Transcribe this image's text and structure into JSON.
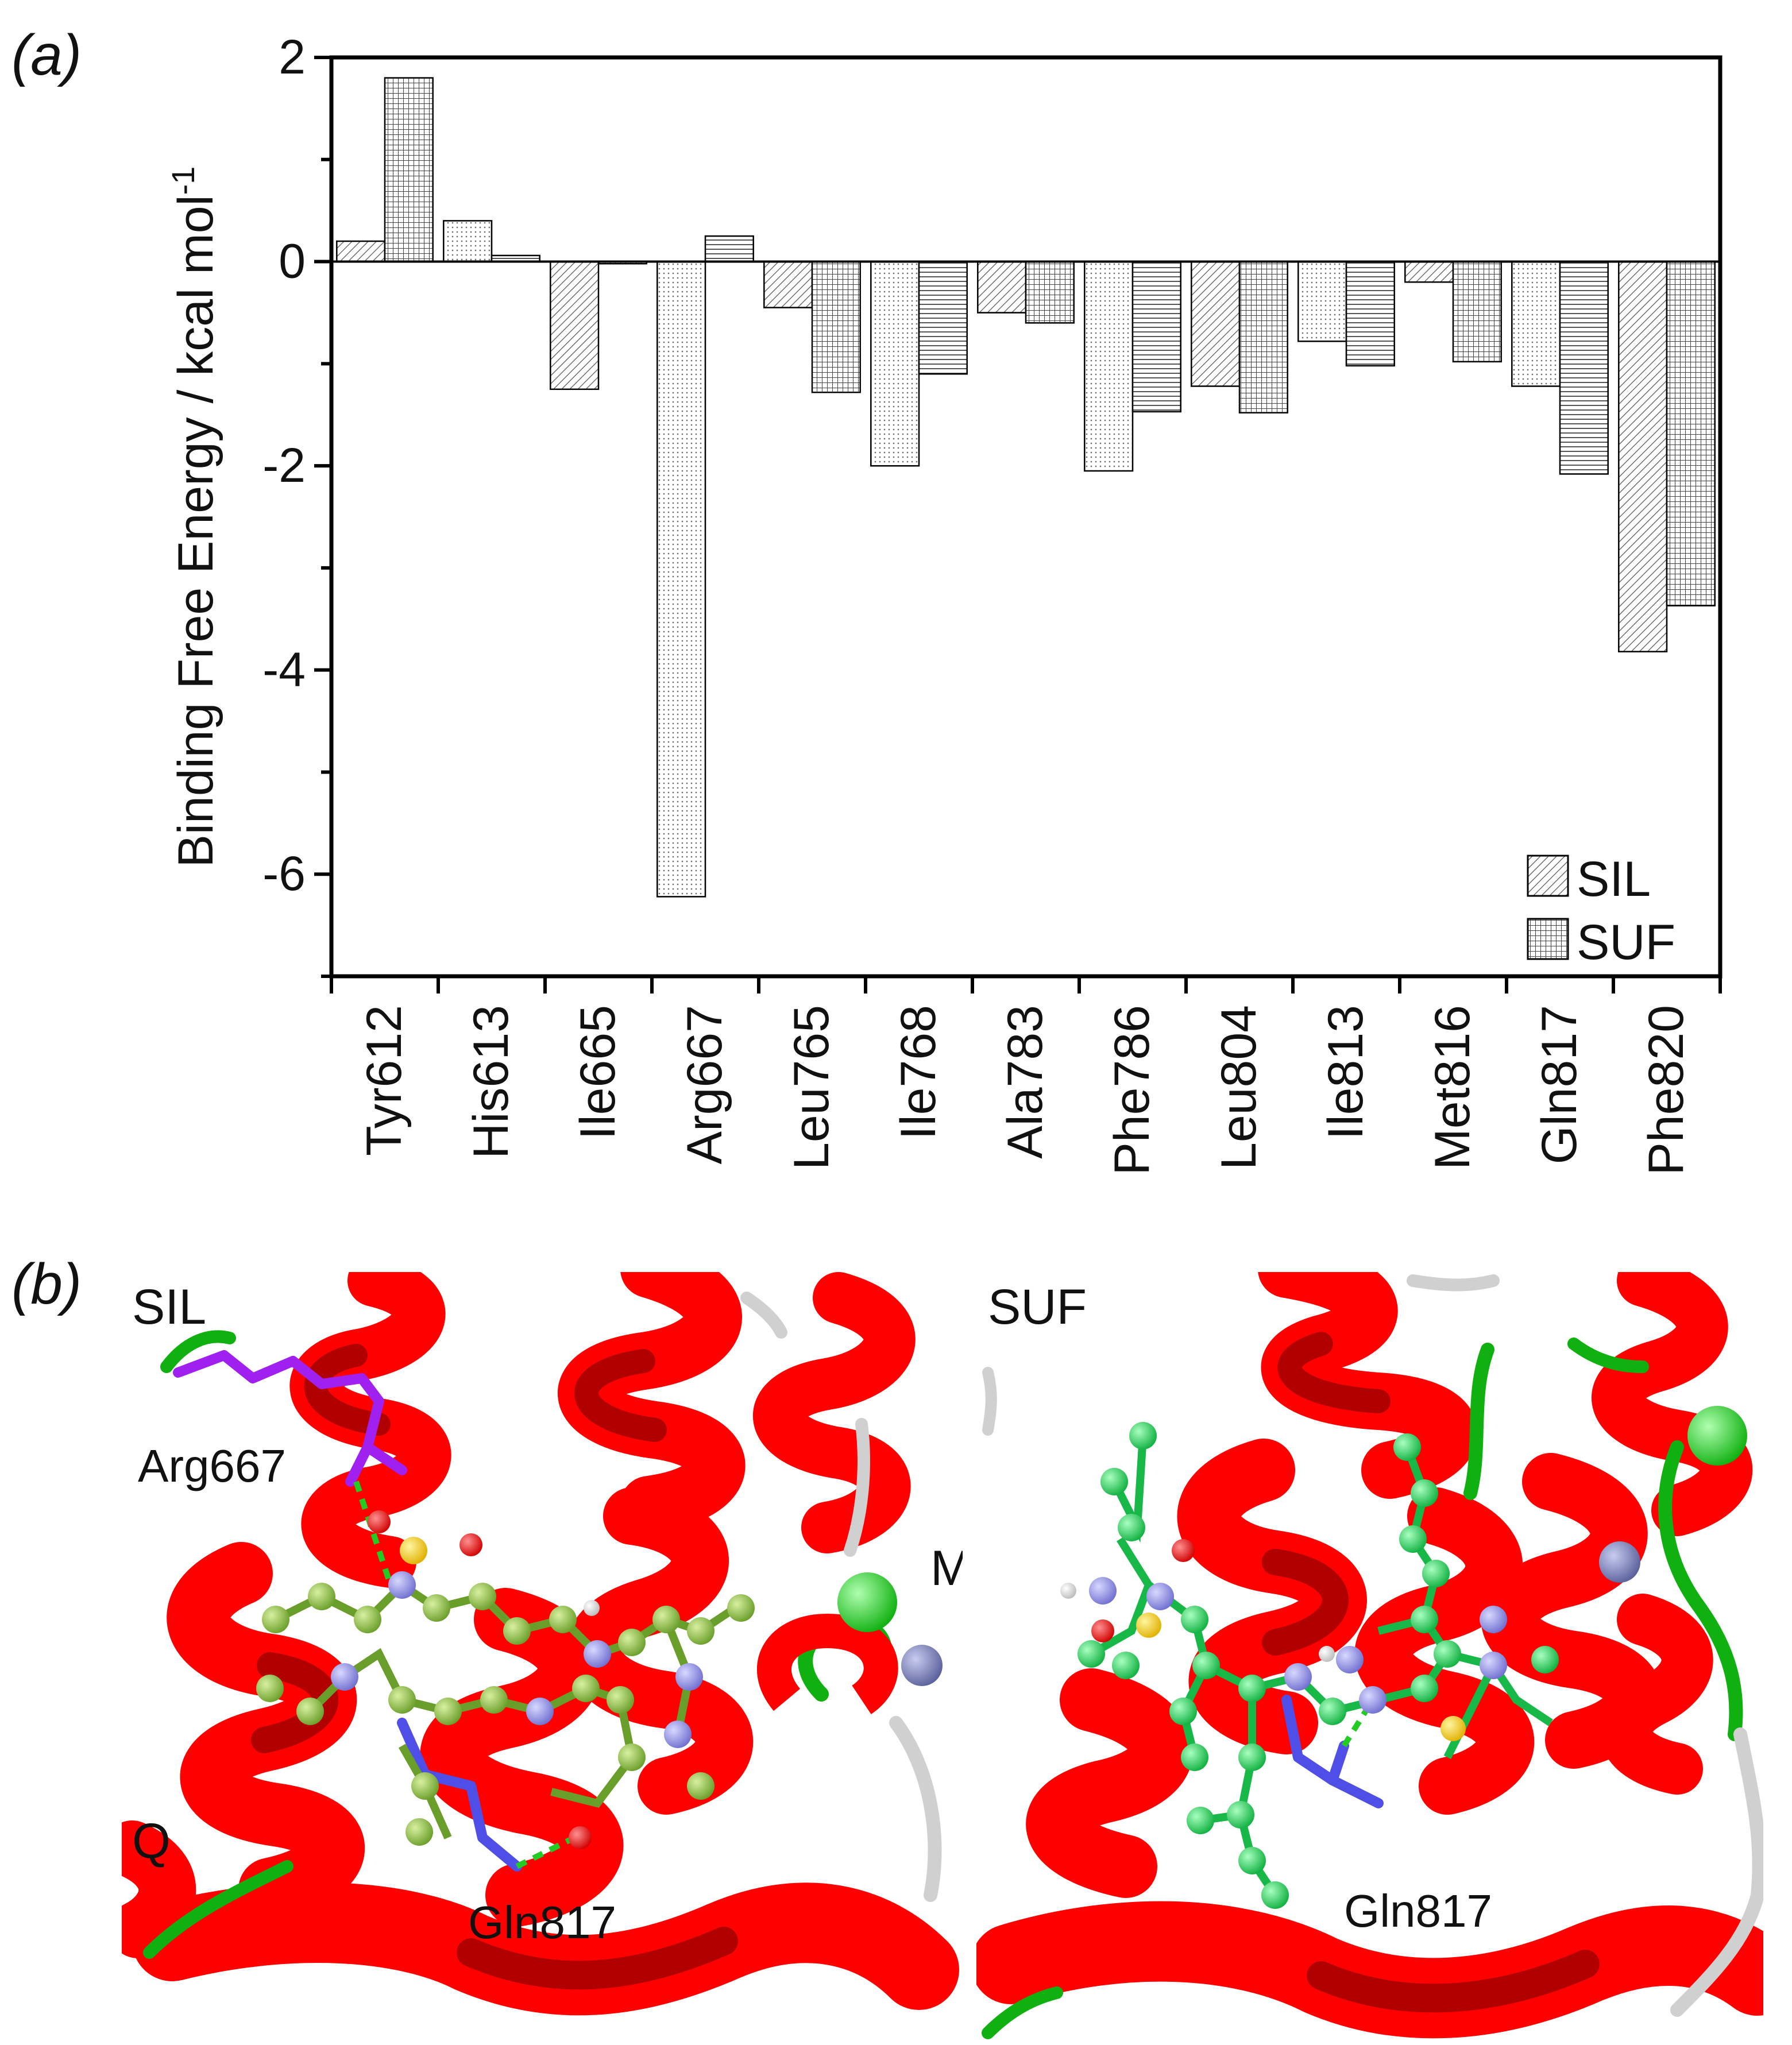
{
  "panel_a_label": "(a)",
  "panel_b_label": "(b)",
  "chart_data": {
    "type": "bar",
    "title": "",
    "xlabel": "",
    "ylabel": "Binding Free Energy / kcal mol",
    "ylabel_superscript": "-1",
    "ylim": [
      -7,
      2
    ],
    "yticks": [
      2,
      0,
      -2,
      -4,
      -6
    ],
    "ytick_labels": [
      "2",
      "0",
      "-2",
      "-4",
      "-6"
    ],
    "categories": [
      "Tyr612",
      "His613",
      "Ile665",
      "Arg667",
      "Leu765",
      "Ile768",
      "Ala783",
      "Phe786",
      "Leu804",
      "Ile813",
      "Met816",
      "Gln817",
      "Phe820"
    ],
    "series": [
      {
        "name": "SIL",
        "values": [
          0.2,
          0.4,
          -1.25,
          -6.22,
          -0.45,
          -2.0,
          -0.5,
          -2.05,
          -1.22,
          -0.78,
          -0.2,
          -1.22,
          -3.82
        ]
      },
      {
        "name": "SUF",
        "values": [
          1.8,
          0.06,
          -0.02,
          0.25,
          -1.28,
          -1.1,
          -0.6,
          -1.47,
          -1.48,
          -1.02,
          -0.98,
          -2.08,
          -3.37
        ]
      }
    ],
    "legend": {
      "position": "bottom-right",
      "entries": [
        "SIL",
        "SUF"
      ]
    },
    "grid": false
  },
  "structure_panels": {
    "left": {
      "label": "SIL",
      "residue_labels": [
        "Arg667",
        "Gln817"
      ],
      "edge_labels": [
        "M",
        "Q"
      ]
    },
    "right": {
      "label": "SUF",
      "residue_labels": [
        "Gln817"
      ]
    }
  },
  "colors": {
    "helix": "#ff0000",
    "helix_dark": "#c40000",
    "coil_green": "#10b010",
    "coil_gray": "#d0d0d0",
    "arg_stick": "#a020f0",
    "gln_stick": "#4f4fe8",
    "ligand_sil": "#8cc63f",
    "ligand_suf": "#22dd55",
    "nitrogen": "#8c8cf0",
    "oxygen": "#ff0d0d",
    "sulfur": "#ffd400",
    "hydrogen": "#ffffff",
    "metal_zn": "#7a80b8",
    "metal_mg": "#22dd22",
    "hbond": "#22cc22"
  }
}
